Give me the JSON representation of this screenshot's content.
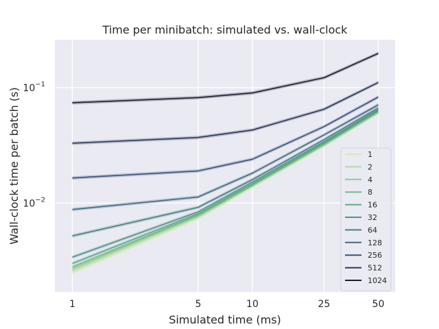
{
  "chart_data": {
    "type": "line",
    "title": "Time per minibatch: simulated vs. wall-clock",
    "xlabel": "Simulated time (ms)",
    "ylabel": "Wall-clock time per batch (s)",
    "x": [
      1,
      5,
      10,
      25,
      50
    ],
    "x_scale": "log",
    "y_scale": "log",
    "xlim": [
      0.8,
      62
    ],
    "ylim": [
      0.0017,
      0.26
    ],
    "x_tick_labels": [
      "1",
      "5",
      "10",
      "25",
      "50"
    ],
    "y_ticks": [
      {
        "value": 0.01,
        "base": "10",
        "exp": "−2"
      },
      {
        "value": 0.1,
        "base": "10",
        "exp": "−1"
      }
    ],
    "grid": true,
    "legend_position": "lower right",
    "series": [
      {
        "name": "1",
        "color": "#d6e8b4",
        "values": [
          0.0025,
          0.0074,
          0.0138,
          0.0313,
          0.0603
        ]
      },
      {
        "name": "2",
        "color": "#b5dba4",
        "values": [
          0.0026,
          0.0076,
          0.0141,
          0.0318,
          0.061
        ]
      },
      {
        "name": "4",
        "color": "#8fcb91",
        "values": [
          0.0027,
          0.0078,
          0.0143,
          0.0322,
          0.0617
        ]
      },
      {
        "name": "8",
        "color": "#73bb8b",
        "values": [
          0.0028,
          0.0079,
          0.0144,
          0.0326,
          0.0623
        ]
      },
      {
        "name": "16",
        "color": "#5fa88a",
        "values": [
          0.003,
          0.0081,
          0.0147,
          0.0331,
          0.0632
        ]
      },
      {
        "name": "32",
        "color": "#4e9486",
        "values": [
          0.0034,
          0.0084,
          0.0152,
          0.034,
          0.0645
        ]
      },
      {
        "name": "64",
        "color": "#458082",
        "values": [
          0.0052,
          0.0092,
          0.016,
          0.0355,
          0.0668
        ]
      },
      {
        "name": "128",
        "color": "#3f6a80",
        "values": [
          0.0088,
          0.0113,
          0.0182,
          0.039,
          0.071
        ]
      },
      {
        "name": "256",
        "color": "#36527a",
        "values": [
          0.0165,
          0.019,
          0.024,
          0.046,
          0.083
        ]
      },
      {
        "name": "512",
        "color": "#2a3656",
        "values": [
          0.033,
          0.037,
          0.043,
          0.065,
          0.111
        ]
      },
      {
        "name": "1024",
        "color": "#1f1b30",
        "values": [
          0.074,
          0.082,
          0.09,
          0.122,
          0.198
        ]
      }
    ]
  }
}
